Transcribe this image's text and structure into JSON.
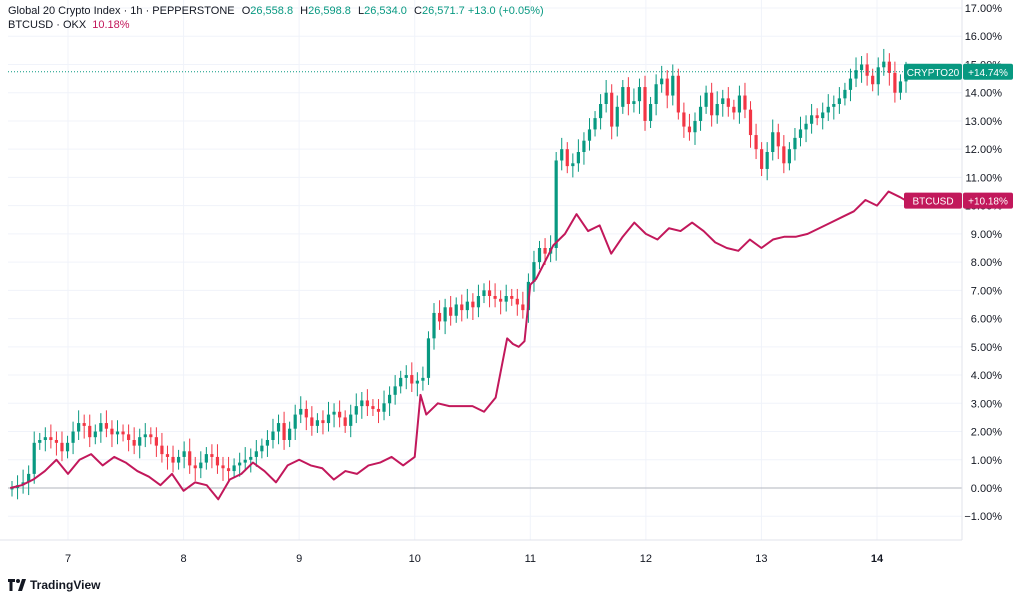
{
  "legend": {
    "crypto": {
      "title": "Global 20 Crypto Index · 1h · PEPPERSTONE",
      "o_label": "O",
      "o_value": "26,558.8",
      "h_label": "H",
      "h_value": "26,598.8",
      "l_label": "L",
      "l_value": "26,534.0",
      "c_label": "C",
      "c_value": "26,571.7 +13.0 (+0.05%)"
    },
    "btc": {
      "title": "BTCUSD · OKX",
      "value": "10.18%"
    }
  },
  "branding": {
    "name": "TradingView"
  },
  "colors": {
    "up": "#089981",
    "down": "#f23645",
    "btc_line": "#c2185b",
    "crypto_badge": "#089981",
    "btc_badge": "#c2185b"
  },
  "chart_data": {
    "type": "line",
    "scale": "percent",
    "y_range": [
      -1.5,
      17.2
    ],
    "y_ticks": [
      "17.00%",
      "16.00%",
      "15.00%",
      "14.00%",
      "13.00%",
      "12.00%",
      "11.00%",
      "10.00%",
      "9.00%",
      "8.00%",
      "7.00%",
      "6.00%",
      "5.00%",
      "4.00%",
      "3.00%",
      "2.00%",
      "1.00%",
      "0.00%",
      "−1.00%"
    ],
    "y_tick_values": [
      17,
      16,
      15,
      14,
      13,
      12,
      11,
      10,
      9,
      8,
      7,
      6,
      5,
      4,
      3,
      2,
      1,
      0,
      -1
    ],
    "x_labels": [
      "7",
      "8",
      "9",
      "10",
      "11",
      "12",
      "13",
      "14"
    ],
    "x_label_positions": [
      7,
      8,
      9,
      10,
      11,
      12,
      13,
      14
    ],
    "x_range": [
      6.5,
      15.25
    ],
    "grid": true,
    "series": [
      {
        "name": "CRYPTO20",
        "kind": "candlestick",
        "last_value_label": "+14.74%",
        "last_value": 14.74,
        "closes": [
          0.0,
          0.1,
          0.2,
          0.5,
          1.6,
          1.7,
          1.8,
          1.7,
          1.6,
          1.3,
          1.6,
          2.0,
          2.3,
          2.2,
          1.8,
          2.0,
          2.3,
          2.1,
          1.9,
          2.0,
          1.9,
          1.7,
          1.5,
          1.8,
          1.9,
          1.8,
          1.5,
          1.2,
          1.1,
          0.9,
          1.1,
          1.3,
          0.8,
          0.7,
          0.9,
          1.2,
          1.1,
          0.8,
          0.7,
          0.6,
          0.8,
          0.9,
          1.0,
          1.1,
          1.3,
          1.5,
          1.7,
          2.0,
          2.3,
          1.7,
          2.1,
          2.6,
          2.8,
          2.5,
          2.2,
          2.4,
          2.3,
          2.6,
          2.7,
          2.5,
          2.2,
          2.6,
          2.9,
          3.1,
          2.9,
          2.8,
          2.7,
          3.0,
          3.3,
          3.6,
          3.9,
          4.0,
          3.7,
          3.8,
          3.9,
          5.3,
          6.2,
          5.9,
          6.4,
          6.1,
          6.5,
          6.3,
          6.6,
          6.4,
          6.8,
          7.0,
          6.8,
          6.7,
          6.6,
          6.8,
          6.7,
          6.5,
          6.3,
          7.3,
          8.0,
          8.5,
          8.3,
          8.5,
          11.6,
          12.0,
          11.4,
          11.5,
          11.9,
          12.3,
          12.7,
          13.1,
          13.6,
          14.0,
          12.8,
          13.5,
          14.2,
          13.6,
          13.7,
          14.2,
          13.0,
          13.6,
          14.3,
          14.5,
          13.9,
          14.6,
          13.3,
          12.8,
          12.6,
          13.0,
          13.5,
          14.0,
          13.2,
          13.6,
          13.8,
          13.5,
          13.3,
          13.9,
          13.4,
          12.5,
          12.0,
          11.3,
          11.9,
          12.6,
          12.1,
          11.5,
          12.0,
          12.4,
          12.7,
          12.9,
          13.2,
          13.1,
          13.3,
          13.5,
          13.6,
          13.8,
          14.1,
          14.5,
          14.8,
          15.0,
          14.6,
          14.3,
          14.9,
          15.1,
          14.7,
          14.0,
          14.4,
          14.74
        ],
        "ohlc_format": "close-only"
      },
      {
        "name": "BTCUSD",
        "kind": "line",
        "last_value_label": "+10.18%",
        "last_value": 10.18,
        "x": [
          6.5,
          6.6,
          6.7,
          6.8,
          6.9,
          7.0,
          7.1,
          7.2,
          7.3,
          7.4,
          7.5,
          7.6,
          7.7,
          7.8,
          7.9,
          8.0,
          8.1,
          8.2,
          8.3,
          8.4,
          8.5,
          8.6,
          8.7,
          8.8,
          8.9,
          9.0,
          9.1,
          9.2,
          9.3,
          9.4,
          9.5,
          9.6,
          9.7,
          9.8,
          9.9,
          10.0,
          10.05,
          10.1,
          10.2,
          10.3,
          10.4,
          10.5,
          10.6,
          10.7,
          10.8,
          10.85,
          10.9,
          10.95,
          11.0,
          11.05,
          11.1,
          11.2,
          11.3,
          11.4,
          11.5,
          11.6,
          11.7,
          11.8,
          11.9,
          12.0,
          12.1,
          12.2,
          12.3,
          12.4,
          12.5,
          12.6,
          12.7,
          12.8,
          12.9,
          13.0,
          13.1,
          13.2,
          13.3,
          13.4,
          13.5,
          13.6,
          13.7,
          13.8,
          13.9,
          14.0,
          14.1,
          14.2,
          14.25
        ],
        "y": [
          0.0,
          0.1,
          0.3,
          0.6,
          1.0,
          0.5,
          1.0,
          1.2,
          0.8,
          1.1,
          0.9,
          0.6,
          0.4,
          0.1,
          0.5,
          -0.1,
          0.2,
          0.1,
          -0.4,
          0.3,
          0.5,
          0.9,
          0.6,
          0.2,
          0.8,
          1.0,
          0.8,
          0.7,
          0.3,
          0.6,
          0.5,
          0.8,
          0.9,
          1.1,
          0.8,
          1.1,
          3.3,
          2.6,
          3.0,
          2.9,
          2.9,
          2.9,
          2.7,
          3.2,
          5.3,
          5.1,
          5.0,
          5.2,
          7.2,
          7.4,
          7.8,
          8.6,
          9.0,
          9.7,
          9.1,
          9.3,
          8.3,
          8.9,
          9.4,
          9.0,
          8.8,
          9.2,
          9.1,
          9.4,
          9.1,
          8.7,
          8.5,
          8.4,
          8.8,
          8.5,
          8.8,
          8.9,
          8.9,
          9.0,
          9.2,
          9.4,
          9.6,
          9.8,
          10.2,
          10.0,
          10.5,
          10.3,
          10.18
        ]
      }
    ]
  }
}
